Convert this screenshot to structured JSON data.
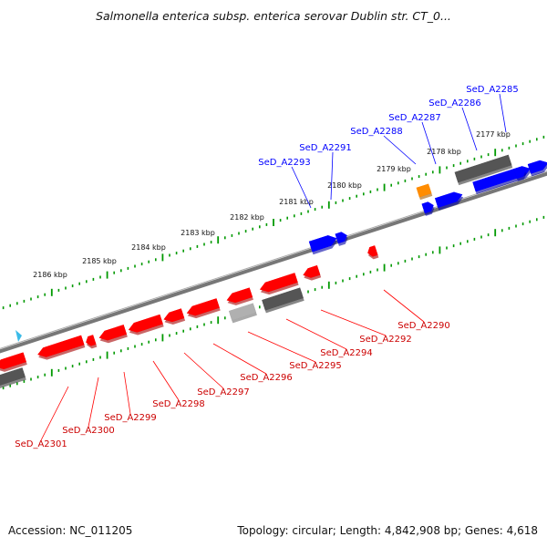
{
  "title": "Salmonella enterica subsp. enterica serovar Dublin str. CT_0...",
  "accession": "Accession: NC_011205",
  "summary": "Topology: circular; Length: 4,842,908 bp; Genes: 4,618",
  "colors": {
    "forward_gene": "#0000ff",
    "reverse_gene": "#ff0000",
    "pseudo_gene": "#555555",
    "light_gene": "#b0b0b0",
    "rna_gene": "#ff8c00",
    "tick": "#009900",
    "backbone": "#777777"
  },
  "scale_labels": [
    "2177 kbp",
    "2178 kbp",
    "2179 kbp",
    "2180 kbp",
    "2181 kbp",
    "2182 kbp",
    "2183 kbp",
    "2184 kbp",
    "2185 kbp",
    "2186 kbp"
  ],
  "forward_labels": [
    "SeD_A2285",
    "SeD_A2286",
    "SeD_A2287",
    "SeD_A2288",
    "SeD_A2291",
    "SeD_A2293"
  ],
  "reverse_labels": [
    "SeD_A2290",
    "SeD_A2292",
    "SeD_A2294",
    "SeD_A2295",
    "SeD_A2296",
    "SeD_A2297",
    "SeD_A2298",
    "SeD_A2299",
    "SeD_A2300",
    "SeD_A2301"
  ]
}
